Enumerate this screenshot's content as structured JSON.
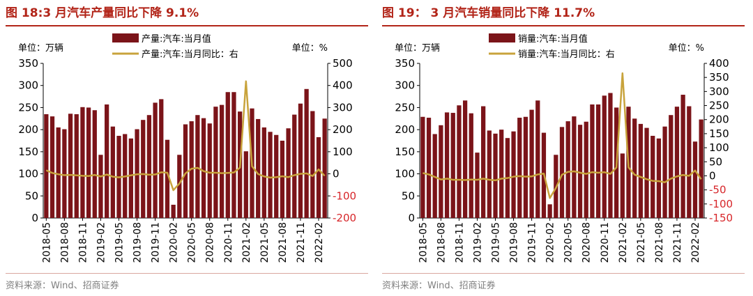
{
  "source_label": "资料来源：Wind、招商证券",
  "chart_data": [
    {
      "type": "bar+line",
      "title": "图 18:3 月汽车产量同比下降 9.1%",
      "left_unit": "单位：万辆",
      "right_unit": "单位：%",
      "legend": [
        "产量:汽车:当月值",
        "产量:汽车:当月同比：右"
      ],
      "colors": {
        "bar": "#7b1419",
        "line": "#c8a33c",
        "right_axis_negative": "#d7262a"
      },
      "left_ylim": [
        0,
        350
      ],
      "left_ticks": [
        "0",
        "50",
        "100",
        "150",
        "200",
        "250",
        "300",
        "350"
      ],
      "right_ylim": [
        -200,
        500
      ],
      "right_ticks": [
        "-200",
        "-100",
        "0",
        "100",
        "200",
        "300",
        "400",
        "500"
      ],
      "x_labels": [
        "2018-05",
        "2018-08",
        "2018-11",
        "2019-02",
        "2019-05",
        "2019-08",
        "2019-11",
        "2020-02",
        "2020-05",
        "2020-08",
        "2020-11",
        "2021-02",
        "2021-05",
        "2021-08",
        "2021-11",
        "2022-02"
      ],
      "series": [
        {
          "name": "产量:汽车:当月值",
          "kind": "bar",
          "values": [
            235,
            230,
            205,
            201,
            236,
            235,
            251,
            250,
            244,
            143,
            257,
            207,
            186,
            190,
            180,
            201,
            222,
            233,
            261,
            269,
            177,
            30,
            143,
            212,
            219,
            233,
            226,
            214,
            252,
            256,
            285,
            285,
            241,
            151,
            248,
            224,
            205,
            195,
            188,
            175,
            203,
            234,
            259,
            292,
            242,
            183,
            225
          ]
        },
        {
          "name": "产量:汽车:当月同比",
          "kind": "line",
          "values": [
            16,
            4,
            -2,
            -6,
            -5,
            -7,
            -9,
            -10,
            -5,
            -12,
            -3,
            -13,
            -16,
            -12,
            -7,
            -2,
            -1,
            -4,
            -3,
            7,
            5,
            -74,
            -44,
            2,
            23,
            27,
            12,
            5,
            5,
            3,
            4,
            6,
            28,
            419,
            34,
            -1,
            -12,
            -17,
            -15,
            -11,
            -15,
            -6,
            0,
            2,
            -10,
            20,
            -9
          ]
        }
      ]
    },
    {
      "type": "bar+line",
      "title": "图 19： 3 月汽车销量同比下降 11.7%",
      "left_unit": "单位：万辆",
      "right_unit": "单位：%",
      "legend": [
        "销量:汽车:当月值",
        "销量:汽车:当月同比：右"
      ],
      "colors": {
        "bar": "#7b1419",
        "line": "#c8a33c",
        "right_axis_negative": "#d7262a"
      },
      "left_ylim": [
        0,
        350
      ],
      "left_ticks": [
        "0",
        "50",
        "100",
        "150",
        "200",
        "250",
        "300",
        "350"
      ],
      "right_ylim": [
        -150,
        400
      ],
      "right_ticks": [
        "-150",
        "-100",
        "-50",
        "0",
        "50",
        "100",
        "150",
        "200",
        "250",
        "300",
        "350",
        "400"
      ],
      "x_labels": [
        "2018-05",
        "2018-08",
        "2018-11",
        "2019-02",
        "2019-05",
        "2019-08",
        "2019-11",
        "2020-02",
        "2020-05",
        "2020-08",
        "2020-11",
        "2021-02",
        "2021-05",
        "2021-08",
        "2021-11",
        "2022-02"
      ],
      "series": [
        {
          "name": "销量:汽车:当月值",
          "kind": "bar",
          "values": [
            229,
            227,
            190,
            210,
            239,
            238,
            255,
            266,
            237,
            148,
            253,
            198,
            191,
            200,
            181,
            196,
            227,
            229,
            245,
            266,
            193,
            31,
            143,
            206,
            219,
            230,
            211,
            218,
            257,
            257,
            277,
            283,
            250,
            146,
            252,
            225,
            213,
            204,
            186,
            180,
            207,
            233,
            252,
            279,
            253,
            173,
            223
          ]
        },
        {
          "name": "销量:汽车:当月同比",
          "kind": "line",
          "values": [
            10,
            5,
            -4,
            -13,
            -10,
            -14,
            -14,
            -15,
            -13,
            -14,
            -10,
            -14,
            -16,
            -10,
            -8,
            -3,
            -1,
            -3,
            -2,
            5,
            8,
            -79,
            -43,
            4,
            14,
            16,
            11,
            7,
            13,
            11,
            13,
            7,
            30,
            365,
            30,
            4,
            -4,
            -12,
            -18,
            -19,
            -23,
            -10,
            -2,
            3,
            0,
            19,
            -12
          ]
        }
      ]
    }
  ]
}
